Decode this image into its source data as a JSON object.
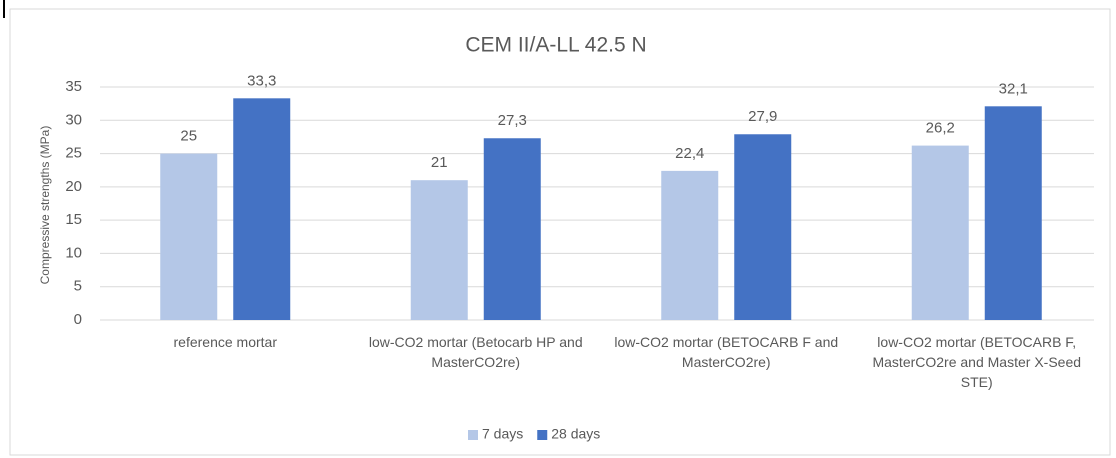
{
  "chart_data": {
    "type": "bar",
    "title": "CEM II/A-LL 42.5 N",
    "y_label": "Compressive strengths (MPa)",
    "categories": [
      "reference mortar",
      "low-CO2 mortar (Betocarb HP and MasterCO2re)",
      "low-CO2 mortar (BETOCARB F and MasterCO2re)",
      "low-CO2 mortar (BETOCARB F, MasterCO2re and Master X-Seed STE)"
    ],
    "series": [
      {
        "name": "7 days",
        "color": "#b4c7e7",
        "values": [
          25,
          21,
          22.4,
          26.2
        ],
        "value_labels": [
          "25",
          "21",
          "22,4",
          "26,2"
        ]
      },
      {
        "name": "28 days",
        "color": "#4472c4",
        "values": [
          33.3,
          27.3,
          27.9,
          32.1
        ],
        "value_labels": [
          "33,3",
          "27,3",
          "27,9",
          "32,1"
        ]
      }
    ],
    "ylim": [
      0,
      35
    ],
    "yticks": [
      0,
      5,
      10,
      15,
      20,
      25,
      30,
      35
    ],
    "grid": true,
    "legend": "bottom"
  }
}
